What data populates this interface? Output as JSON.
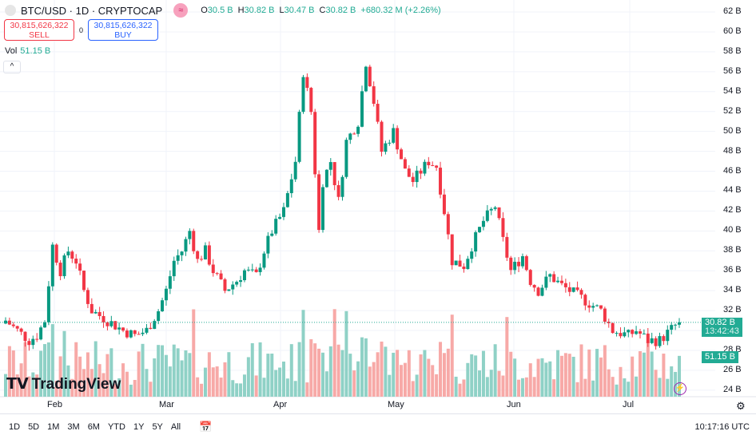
{
  "header": {
    "symbol": "BTC/USD · 1D · CRYPTOCAP",
    "o_label": "O",
    "o": "30.5 B",
    "h_label": "H",
    "h": "30.82 B",
    "l_label": "L",
    "l": "30.47 B",
    "c_label": "C",
    "c": "30.82 B",
    "change": "+680.32 M (+2.26%)"
  },
  "trade": {
    "sell_price": "30,815,626,322",
    "sell_label": "SELL",
    "spread": "0",
    "buy_price": "30,815,626,322",
    "buy_label": "BUY"
  },
  "volume": {
    "label": "Vol",
    "value": "51.15 B"
  },
  "price_axis": [
    "62 B",
    "60 B",
    "58 B",
    "56 B",
    "54 B",
    "52 B",
    "50 B",
    "48 B",
    "46 B",
    "44 B",
    "42 B",
    "40 B",
    "38 B",
    "36 B",
    "34 B",
    "32 B",
    "28 B",
    "26 B",
    "24 B"
  ],
  "price_tag": {
    "price": "30.82 B",
    "countdown": "13:42:43"
  },
  "volume_tag": "51.15 B",
  "time_axis": [
    "Feb",
    "Mar",
    "Apr",
    "May",
    "Jun",
    "Jul"
  ],
  "watermark": "TradingView",
  "ranges": [
    "1D",
    "5D",
    "1M",
    "3M",
    "6M",
    "YTD",
    "1Y",
    "5Y",
    "All"
  ],
  "clock": "10:17:16 UTC",
  "colors": {
    "up": "#089981",
    "down": "#f23645",
    "vol_up": "#8fd1c6",
    "vol_down": "#f7a9a7"
  },
  "chart_data": {
    "type": "candlestick",
    "unit": "B USD",
    "ylim": [
      24,
      62
    ],
    "note": "approximate daily close keypoints (day index from mid-Jan, value in B)",
    "close_keypoints": [
      [
        0,
        31
      ],
      [
        3,
        30
      ],
      [
        6,
        29
      ],
      [
        8,
        29.5
      ],
      [
        10,
        31
      ],
      [
        12,
        38.5
      ],
      [
        14,
        36
      ],
      [
        16,
        38
      ],
      [
        18,
        37
      ],
      [
        20,
        34
      ],
      [
        22,
        32
      ],
      [
        26,
        31
      ],
      [
        30,
        30
      ],
      [
        33,
        29.5
      ],
      [
        36,
        30
      ],
      [
        39,
        32
      ],
      [
        41,
        34
      ],
      [
        43,
        37
      ],
      [
        45,
        38
      ],
      [
        47,
        40
      ],
      [
        49,
        37
      ],
      [
        51,
        38
      ],
      [
        53,
        36
      ],
      [
        56,
        34
      ],
      [
        59,
        35
      ],
      [
        61,
        36
      ],
      [
        64,
        35.5
      ],
      [
        66,
        38
      ],
      [
        68,
        40
      ],
      [
        71,
        42
      ],
      [
        74,
        47
      ],
      [
        76,
        56
      ],
      [
        78,
        52
      ],
      [
        79,
        46
      ],
      [
        80,
        40
      ],
      [
        81,
        45
      ],
      [
        83,
        47
      ],
      [
        85,
        43
      ],
      [
        87,
        49
      ],
      [
        90,
        51
      ],
      [
        92,
        57
      ],
      [
        94,
        53
      ],
      [
        96,
        48
      ],
      [
        99,
        50
      ],
      [
        102,
        46
      ],
      [
        104,
        45
      ],
      [
        108,
        47
      ],
      [
        110,
        46.5
      ],
      [
        112,
        42
      ],
      [
        114,
        37
      ],
      [
        117,
        36.5
      ],
      [
        119,
        38.5
      ],
      [
        122,
        41
      ],
      [
        125,
        42.5
      ],
      [
        127,
        39
      ],
      [
        129,
        36
      ],
      [
        132,
        37.5
      ],
      [
        134,
        35
      ],
      [
        136,
        34
      ],
      [
        139,
        35.5
      ],
      [
        142,
        34.5
      ],
      [
        146,
        33.5
      ],
      [
        150,
        32.5
      ],
      [
        152,
        32
      ],
      [
        155,
        30
      ],
      [
        159,
        29.5
      ],
      [
        161,
        30
      ],
      [
        164,
        29
      ],
      [
        167,
        29
      ],
      [
        171,
        30.5
      ],
      [
        172,
        30.82
      ]
    ],
    "volume_last": 51.15,
    "volume_range": [
      15,
      130
    ]
  }
}
